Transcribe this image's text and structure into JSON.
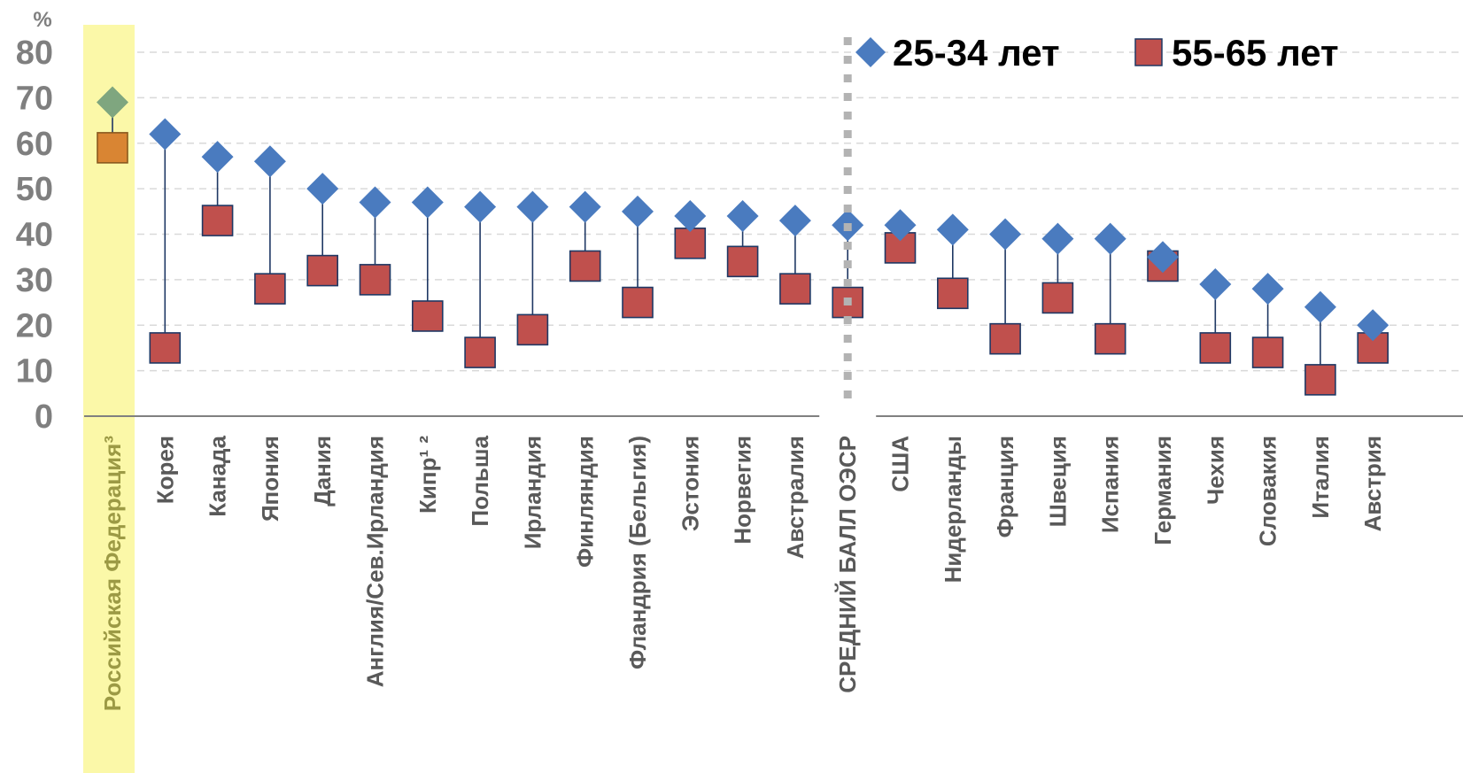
{
  "chart_data": {
    "type": "scatter",
    "y_unit": "%",
    "ylim": [
      0,
      80
    ],
    "yticks": [
      "0",
      "10",
      "20",
      "30",
      "40",
      "50",
      "60",
      "70",
      "80"
    ],
    "grid": true,
    "legend_position": "top-right",
    "categories": [
      "Российская Федерация³",
      "Корея",
      "Канада",
      "Япония",
      "Дания",
      "Англия/Сев.Ирландия",
      "Кипр¹ ²",
      "Польша",
      "Ирландия",
      "Финляндия",
      "Фландрия (Бельгия)",
      "Эстония",
      "Норвегия",
      "Австралия",
      "СРЕДНИЙ БАЛЛ ОЭСР",
      "США",
      "Нидерланды",
      "Франция",
      "Швеция",
      "Испания",
      "Германия",
      "Чехия",
      "Словакия",
      "Италия",
      "Австрия"
    ],
    "highlighted_category": "Российская Федерация³",
    "oecd_average_category": "СРЕДНИЙ БАЛЛ ОЭСР",
    "series": [
      {
        "name": "25-34 лет",
        "marker": "diamond",
        "color": "#4a7bbf",
        "values": [
          69,
          62,
          57,
          56,
          50,
          47,
          47,
          46,
          46,
          46,
          45,
          44,
          44,
          43,
          42,
          42,
          41,
          40,
          39,
          39,
          35,
          29,
          28,
          24,
          20
        ]
      },
      {
        "name": "55-65 лет",
        "marker": "square",
        "color": "#c0504d",
        "values": [
          59,
          15,
          43,
          28,
          32,
          30,
          22,
          14,
          19,
          33,
          25,
          38,
          34,
          28,
          25,
          37,
          27,
          17,
          26,
          17,
          33,
          15,
          14,
          8,
          15
        ]
      }
    ],
    "highlight_colors": {
      "band": "#fbf8a8",
      "diamond": "#7fa67f",
      "square": "#d98533"
    },
    "colors": {
      "connector": "#1f3864",
      "grid": "#d9d9d9",
      "oecd_divider": "#b3b3b3",
      "axis_text": "#7f7f7f",
      "category_text": "#595959",
      "highlight_text": "#9c9a45"
    }
  }
}
